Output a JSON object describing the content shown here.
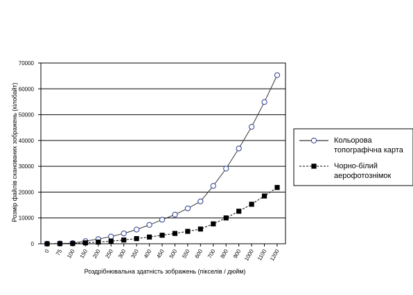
{
  "chart_data": {
    "type": "line",
    "xlabel": "Роздрібнювальна здатність зображень  (пікселів / дюйм)",
    "ylabel": "Розмір файлів сканованих зображень  (кілобайт)",
    "ylim": [
      0,
      70000
    ],
    "yticks": [
      "0",
      "10000",
      "20000",
      "30000",
      "40000",
      "50000",
      "60000",
      "70000"
    ],
    "yticks_as_printed": [
      "0",
      "10000",
      "20000",
      "30000",
      "40000",
      "50000",
      "60000",
      "70000"
    ],
    "categories": [
      "0",
      "75",
      "100",
      "150",
      "200",
      "250",
      "300",
      "350",
      "400",
      "450",
      "500",
      "550",
      "600",
      "700",
      "800",
      "900",
      "1000",
      "1100",
      "1200"
    ],
    "grid": "horizontal",
    "legend_position": "right",
    "series": [
      {
        "name": "Кольорова топографічна карта",
        "name_lines": [
          "Кольорова",
          "топографічна карта"
        ],
        "marker": "open-circle",
        "line": "solid",
        "values": [
          0,
          100,
          250,
          1000,
          1800,
          2800,
          4000,
          5500,
          7300,
          9300,
          11300,
          13700,
          16400,
          22400,
          29100,
          36900,
          45300,
          54900,
          65300
        ]
      },
      {
        "name": "Чорно-білий аерофотознімок",
        "name_lines": [
          "Чорно-білий",
          "аерофотознімок"
        ],
        "marker": "filled-square",
        "line": "dashed",
        "values": [
          0,
          50,
          90,
          350,
          650,
          1000,
          1450,
          2000,
          2600,
          3300,
          4000,
          4800,
          5700,
          7700,
          10000,
          12600,
          15300,
          18500,
          21800
        ]
      }
    ]
  }
}
